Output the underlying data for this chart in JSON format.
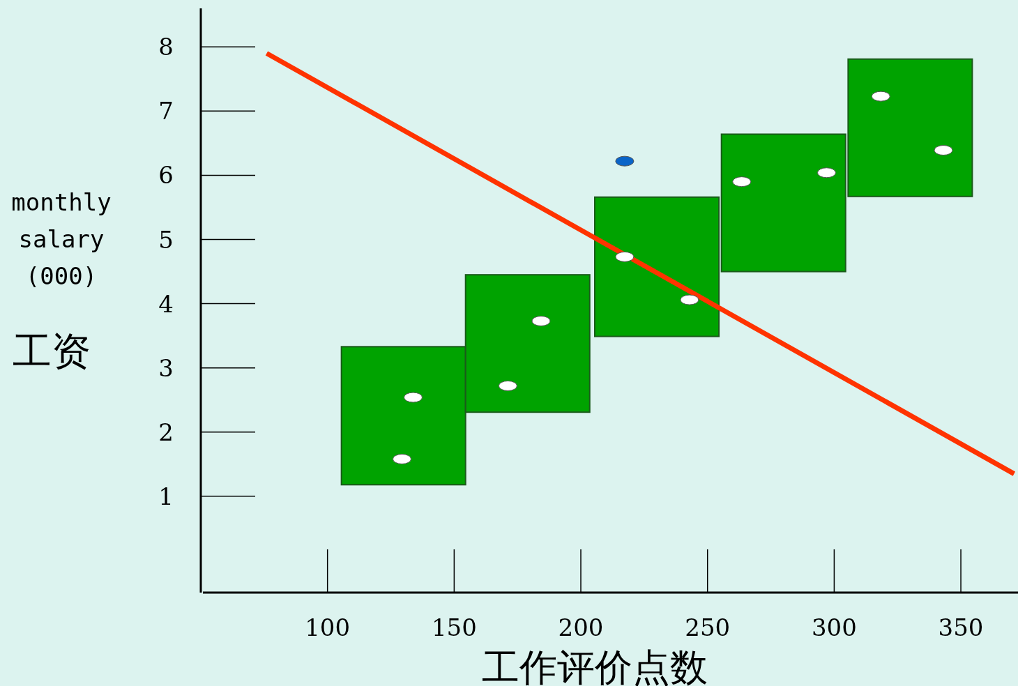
{
  "chart_data": {
    "type": "bar",
    "xlabel": "工作评价点数",
    "ylabel": "monthly salary (000)",
    "annotations": [
      "工资"
    ],
    "xlim": [
      50,
      372
    ],
    "ylim": [
      -0.5,
      8.6
    ],
    "xticks": [
      100,
      150,
      200,
      250,
      300,
      350
    ],
    "yticks": [
      1,
      2,
      3,
      4,
      5,
      6,
      7,
      8
    ],
    "grid": false,
    "series": [
      {
        "color": "#00a300",
        "x": [
          130,
          179,
          230,
          280,
          330
        ],
        "base": [
          1.18,
          2.31,
          3.49,
          4.5,
          5.67
        ],
        "values": [
          2.15,
          2.14,
          2.17,
          2.14,
          2.14
        ]
      },
      {
        "type": "scatter",
        "color": "#ffffff",
        "x": [
          129.4,
          133.8,
          171.2,
          184.3,
          217.3,
          242.9,
          263.5,
          297,
          318.4,
          343.1
        ],
        "values": [
          1.58,
          2.54,
          2.72,
          3.73,
          4.73,
          4.06,
          5.9,
          6.04,
          7.23,
          6.39
        ]
      },
      {
        "type": "scatter",
        "color": "#0a64c8",
        "x": [
          217.3
        ],
        "values": [
          6.22
        ]
      },
      {
        "type": "line",
        "color": "#ff3300",
        "x": [
          76,
          371
        ],
        "values": [
          7.9,
          1.35
        ]
      }
    ]
  }
}
